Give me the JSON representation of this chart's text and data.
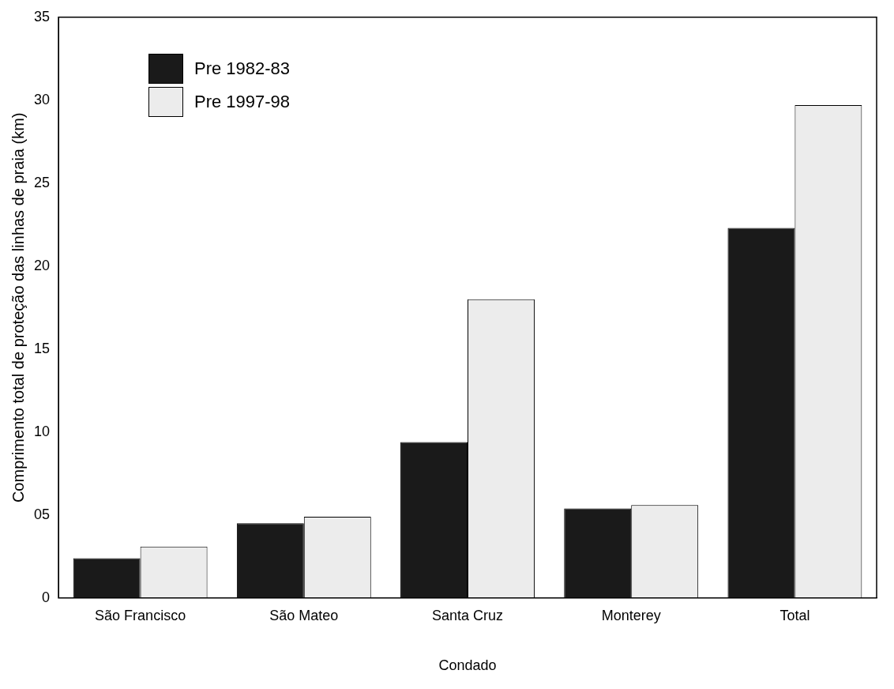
{
  "chart_data": {
    "type": "bar",
    "xlabel": "Condado",
    "ylabel": "Comprimento total de proteção das linhas de praia (km)",
    "categories": [
      "São Francisco",
      "São Mateo",
      "Santa Cruz",
      "Monterey",
      "Total"
    ],
    "series": [
      {
        "name": "Pre 1982-83",
        "color": "#1a1a1a",
        "values": [
          2.4,
          4.5,
          9.4,
          5.4,
          22.3
        ]
      },
      {
        "name": "Pre 1997-98",
        "color": "#ececec",
        "values": [
          3.1,
          4.9,
          18.0,
          5.6,
          29.7
        ]
      }
    ],
    "ylim": [
      0,
      35
    ],
    "yticks": [
      0,
      {
        "value": 5,
        "label": "05"
      },
      10,
      15,
      20,
      25,
      30,
      35
    ],
    "grid": false,
    "legend": "top left"
  }
}
